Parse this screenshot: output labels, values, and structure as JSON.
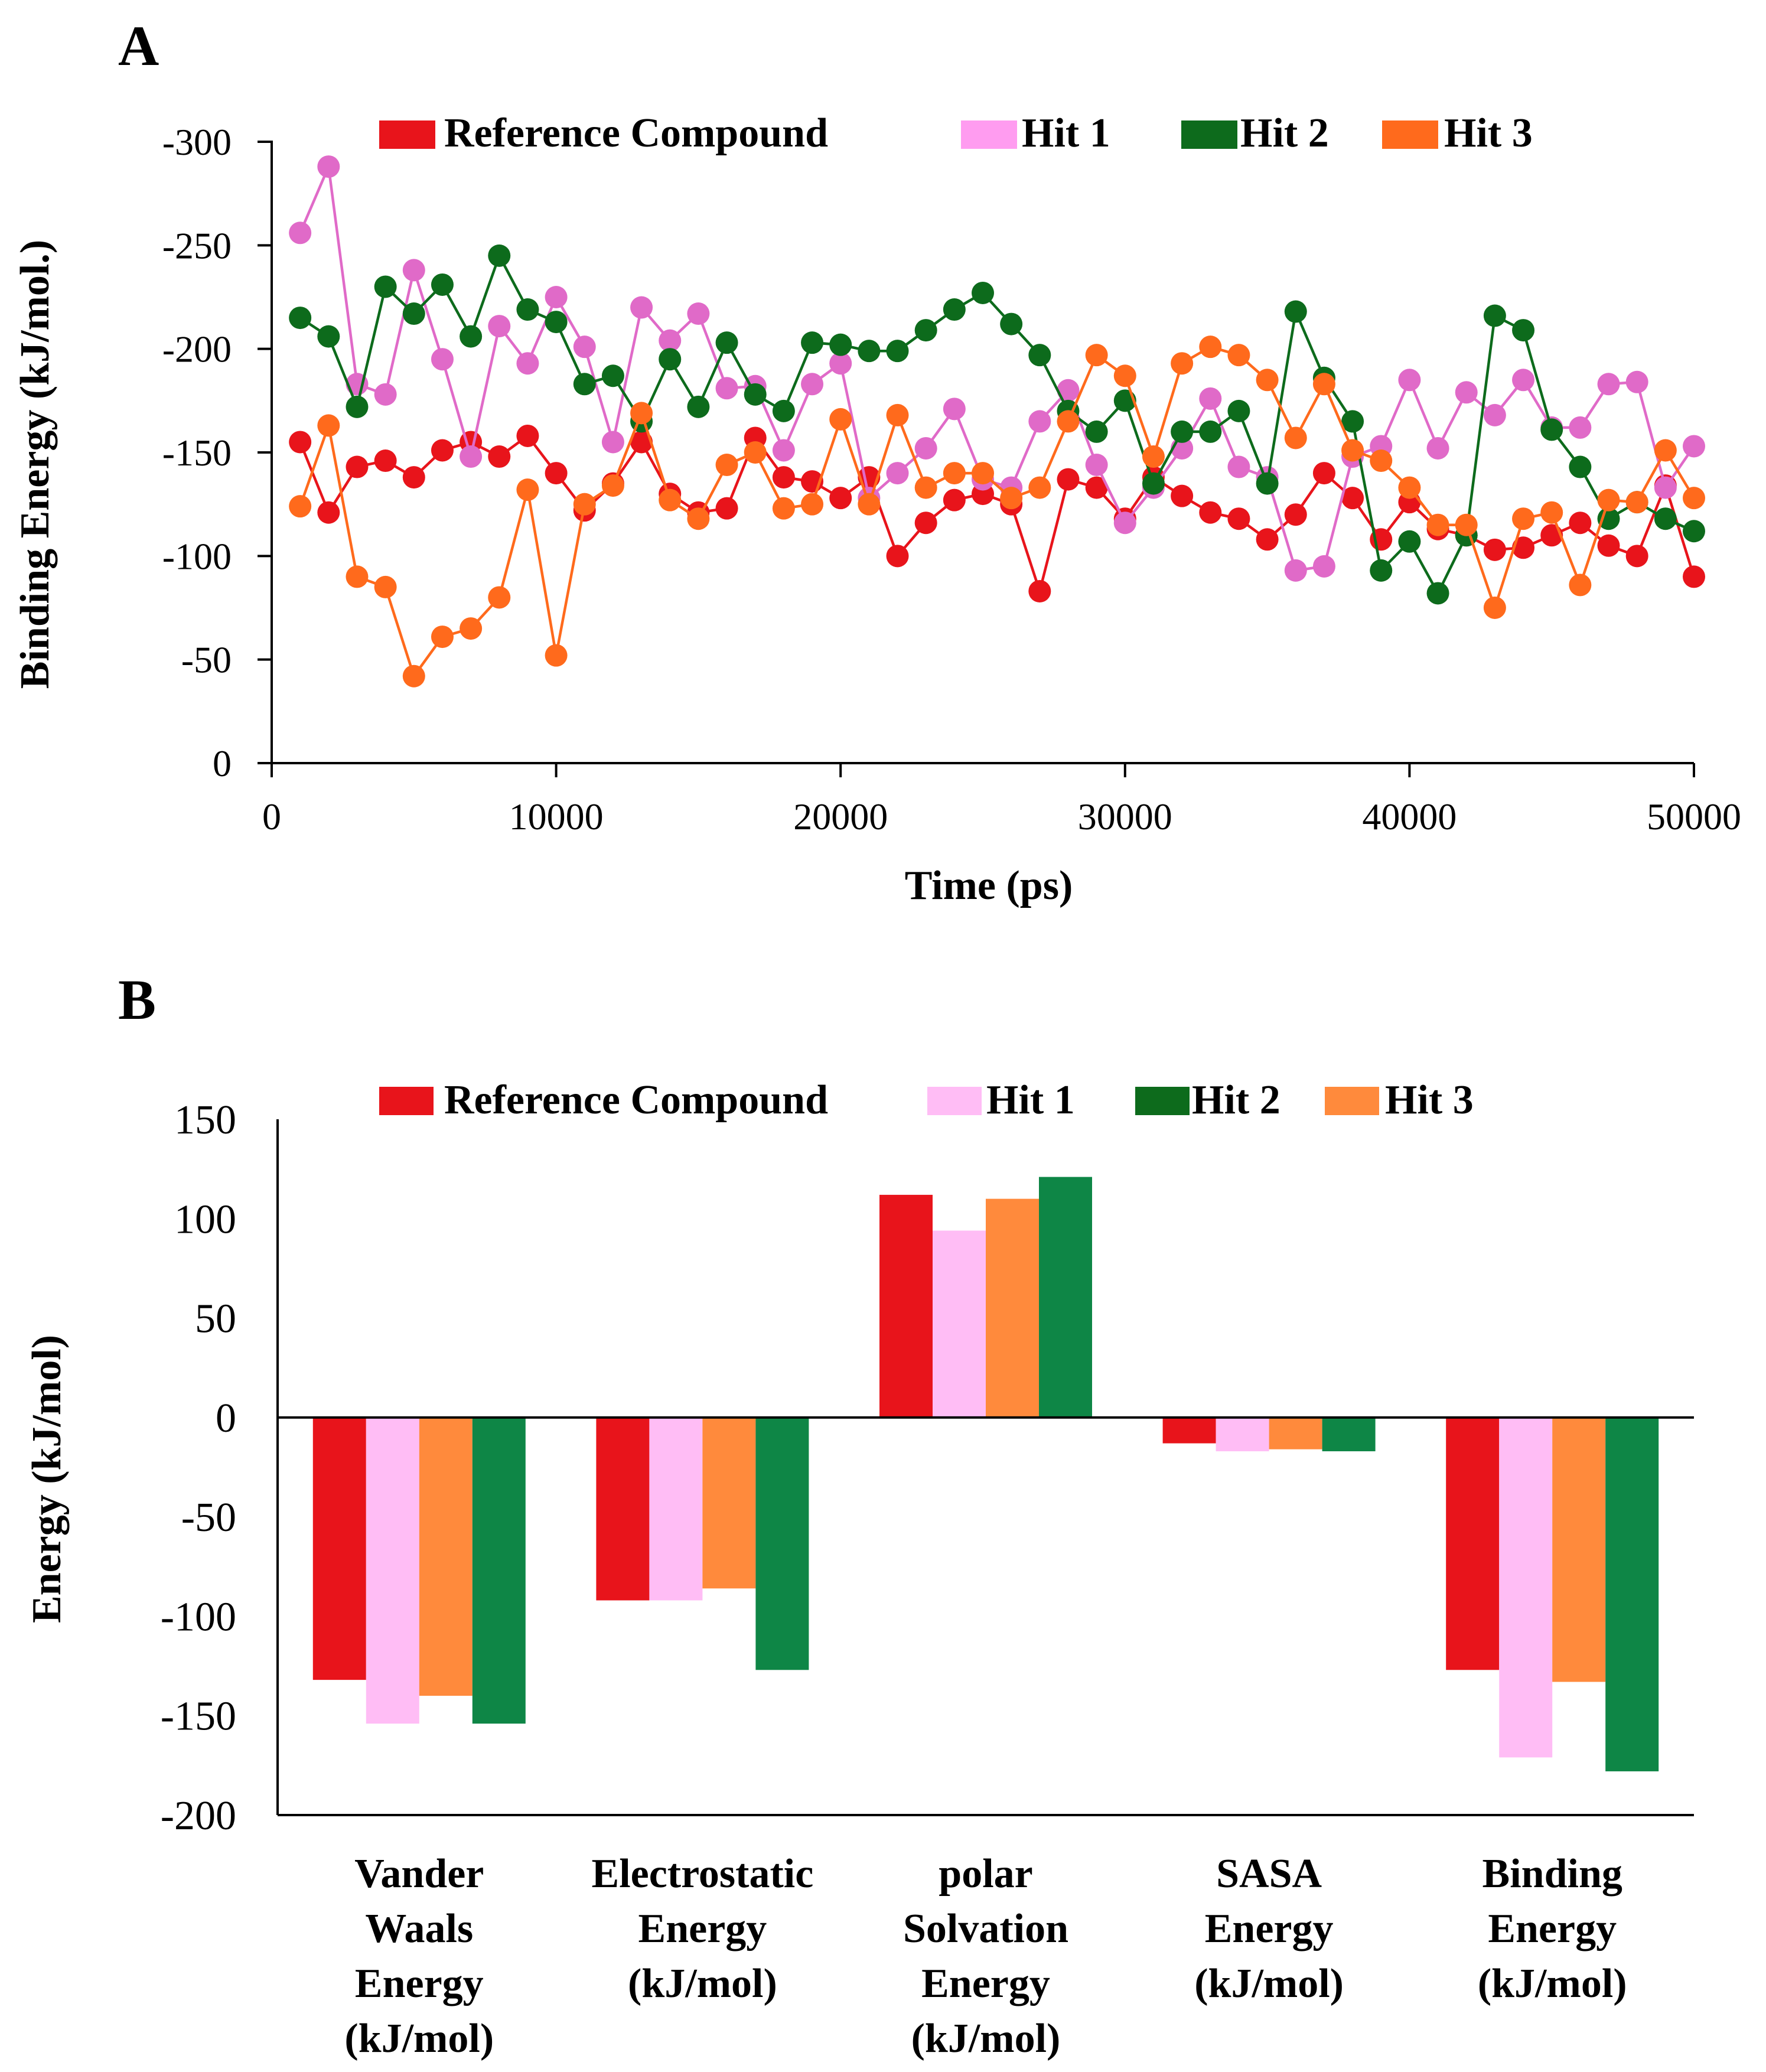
{
  "colors": {
    "reference": "#e8141b",
    "hit1_line": "#e06ac8",
    "hit1_bar": "#ffbdf5",
    "hit2_line": "#0d6b1c",
    "hit2_bar": "#0e8646",
    "hit3": "#ff6a1c",
    "hit3_bar": "#ff8a3c",
    "axis": "#000000"
  },
  "chart_data": [
    {
      "panel": "A",
      "type": "line",
      "title": "",
      "xlabel": "Time (ps)",
      "ylabel": "Binding Energy (kJ/mol.)",
      "xlim": [
        0,
        50000
      ],
      "ylim": [
        -300,
        0
      ],
      "y_inverted": true,
      "x_ticks": [
        0,
        10000,
        20000,
        30000,
        40000,
        50000
      ],
      "x_tick_labels": [
        "0",
        "10000",
        "20000",
        "30000",
        "40000",
        "50000"
      ],
      "y_ticks": [
        -300,
        -250,
        -200,
        -150,
        -100,
        -50,
        0
      ],
      "y_tick_labels": [
        "-300",
        "-250",
        "-200",
        "-150",
        "-100",
        "-50",
        "0"
      ],
      "legend": [
        "Reference Compound",
        "Hit 1",
        "Hit 2",
        "Hit 3"
      ],
      "x": [
        1000,
        2000,
        3000,
        4000,
        5000,
        6000,
        7000,
        8000,
        9000,
        10000,
        11000,
        12000,
        13000,
        14000,
        15000,
        16000,
        17000,
        18000,
        19000,
        20000,
        21000,
        22000,
        23000,
        24000,
        25000,
        26000,
        27000,
        28000,
        29000,
        30000,
        31000,
        32000,
        33000,
        34000,
        35000,
        36000,
        37000,
        38000,
        39000,
        40000,
        41000,
        42000,
        43000,
        44000,
        45000,
        46000,
        47000,
        48000,
        49000,
        50000
      ],
      "series": [
        {
          "name": "Reference Compound",
          "color_key": "reference",
          "values": [
            -155,
            -121,
            -143,
            -146,
            -138,
            -151,
            -155,
            -148,
            -158,
            -140,
            -122,
            -135,
            -155,
            -130,
            -121,
            -123,
            -157,
            -138,
            -136,
            -128,
            -138,
            -100,
            -116,
            -127,
            -130,
            -125,
            -83,
            -137,
            -133,
            -118,
            -138,
            -129,
            -121,
            -118,
            -108,
            -120,
            -140,
            -128,
            -108,
            -126,
            -113,
            -110,
            -103,
            -104,
            -110,
            -116,
            -105,
            -100,
            -134,
            -90
          ]
        },
        {
          "name": "Hit 1",
          "color_key": "hit1_line",
          "values": [
            -256,
            -288,
            -183,
            -178,
            -238,
            -195,
            -148,
            -211,
            -193,
            -225,
            -201,
            -155,
            -220,
            -204,
            -217,
            -181,
            -182,
            -151,
            -183,
            -193,
            -128,
            -140,
            -152,
            -171,
            -137,
            -133,
            -165,
            -180,
            -144,
            -116,
            -133,
            -152,
            -176,
            -143,
            -138,
            -93,
            -95,
            -148,
            -153,
            -185,
            -152,
            -179,
            -168,
            -185,
            -162,
            -162,
            -183,
            -184,
            -133,
            -153
          ]
        },
        {
          "name": "Hit 2",
          "color_key": "hit2_line",
          "values": [
            -215,
            -206,
            -172,
            -230,
            -217,
            -231,
            -206,
            -245,
            -219,
            -213,
            -183,
            -187,
            -165,
            -195,
            -172,
            -203,
            -178,
            -170,
            -203,
            -202,
            -199,
            -199,
            -209,
            -219,
            -227,
            -212,
            -197,
            -170,
            -160,
            -175,
            -135,
            -160,
            -160,
            -170,
            -135,
            -218,
            -186,
            -165,
            -93,
            -107,
            -82,
            -110,
            -216,
            -209,
            -161,
            -143,
            -118,
            -126,
            -118,
            -112
          ]
        },
        {
          "name": "Hit 3",
          "color_key": "hit3",
          "values": [
            -124,
            -163,
            -90,
            -85,
            -42,
            -61,
            -65,
            -80,
            -132,
            -52,
            -125,
            -134,
            -169,
            -127,
            -118,
            -144,
            -150,
            -123,
            -125,
            -166,
            -125,
            -168,
            -133,
            -140,
            -140,
            -128,
            -133,
            -165,
            -197,
            -187,
            -148,
            -193,
            -201,
            -197,
            -185,
            -157,
            -183,
            -151,
            -146,
            -133,
            -115,
            -115,
            -75,
            -118,
            -121,
            -86,
            -127,
            -126,
            -151,
            -128
          ]
        }
      ]
    },
    {
      "panel": "B",
      "type": "bar",
      "title": "",
      "xlabel": "",
      "ylabel": "Energy (kJ/mol)",
      "ylim": [
        -200,
        150
      ],
      "y_ticks": [
        150,
        100,
        50,
        0,
        -50,
        -100,
        -150,
        -200
      ],
      "y_tick_labels": [
        "150",
        "100",
        "50",
        "0",
        "-50",
        "-100",
        "-150",
        "-200"
      ],
      "legend": [
        "Reference Compound",
        "Hit 1",
        "Hit 2",
        "Hit 3"
      ],
      "categories": [
        [
          "Vander",
          "Waals",
          "Energy",
          "(kJ/mol)"
        ],
        [
          "Electrostatic",
          "Energy",
          "(kJ/mol)"
        ],
        [
          "polar",
          "Solvation",
          "Energy",
          "(kJ/mol)"
        ],
        [
          "SASA",
          "Energy",
          "(kJ/mol)"
        ],
        [
          "Binding",
          "Energy",
          "(kJ/mol)"
        ]
      ],
      "series": [
        {
          "name": "Reference Compound",
          "color_key": "reference",
          "values": [
            -132,
            -92,
            112,
            -13,
            -127
          ]
        },
        {
          "name": "Hit 1",
          "color_key": "hit1_bar",
          "values": [
            -154,
            -92,
            94,
            -17,
            -171
          ]
        },
        {
          "name": "Hit 3",
          "color_key": "hit3_bar",
          "values": [
            -140,
            -86,
            110,
            -16,
            -133
          ]
        },
        {
          "name": "Hit 2",
          "color_key": "hit2_bar",
          "values": [
            -154,
            -127,
            121,
            -17,
            -178
          ]
        }
      ]
    }
  ]
}
